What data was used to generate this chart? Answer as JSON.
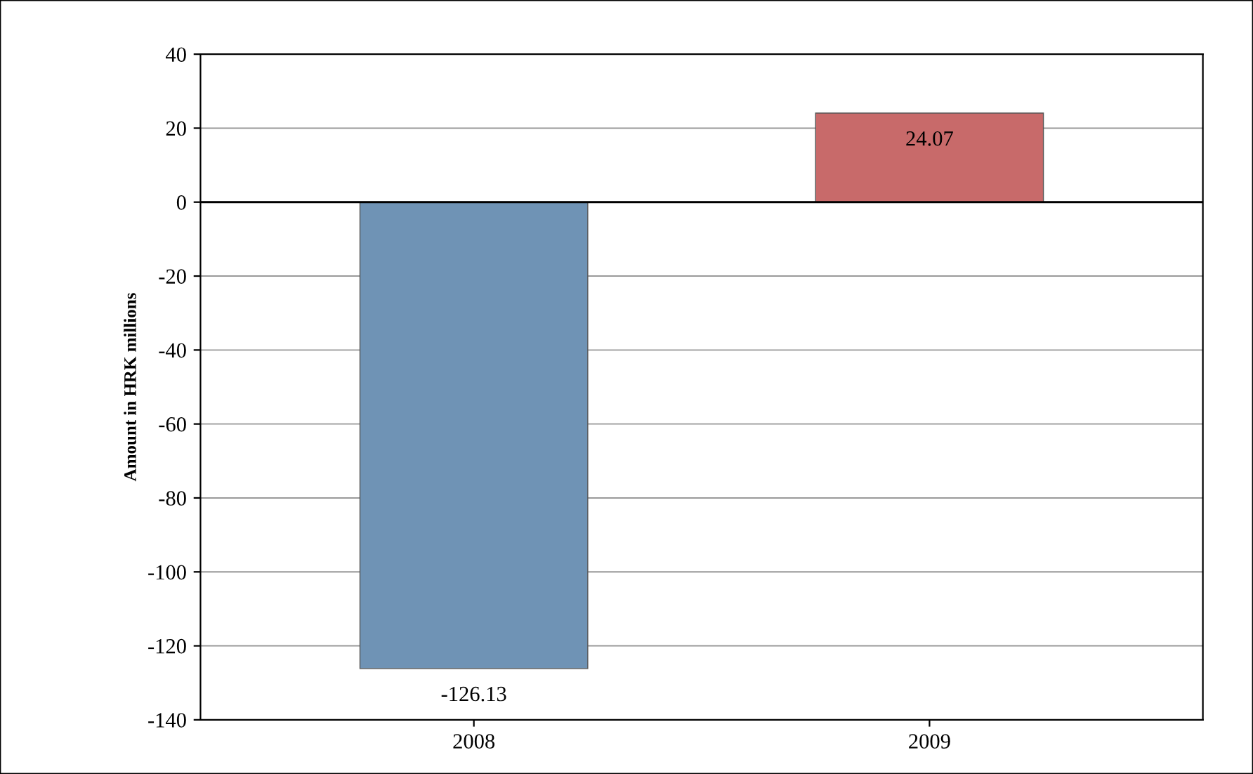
{
  "chart_data": {
    "type": "bar",
    "ylabel": "Amount in HRK millions",
    "categories": [
      "2008",
      "2009"
    ],
    "values": [
      -126.13,
      24.07
    ],
    "colors": [
      "#6f93b5",
      "#c86a6a"
    ],
    "ylim": [
      -140,
      40
    ],
    "yticks": [
      -140,
      -120,
      -100,
      -80,
      -60,
      -40,
      -20,
      0,
      20,
      40
    ],
    "grid": "y",
    "data_labels": true
  }
}
